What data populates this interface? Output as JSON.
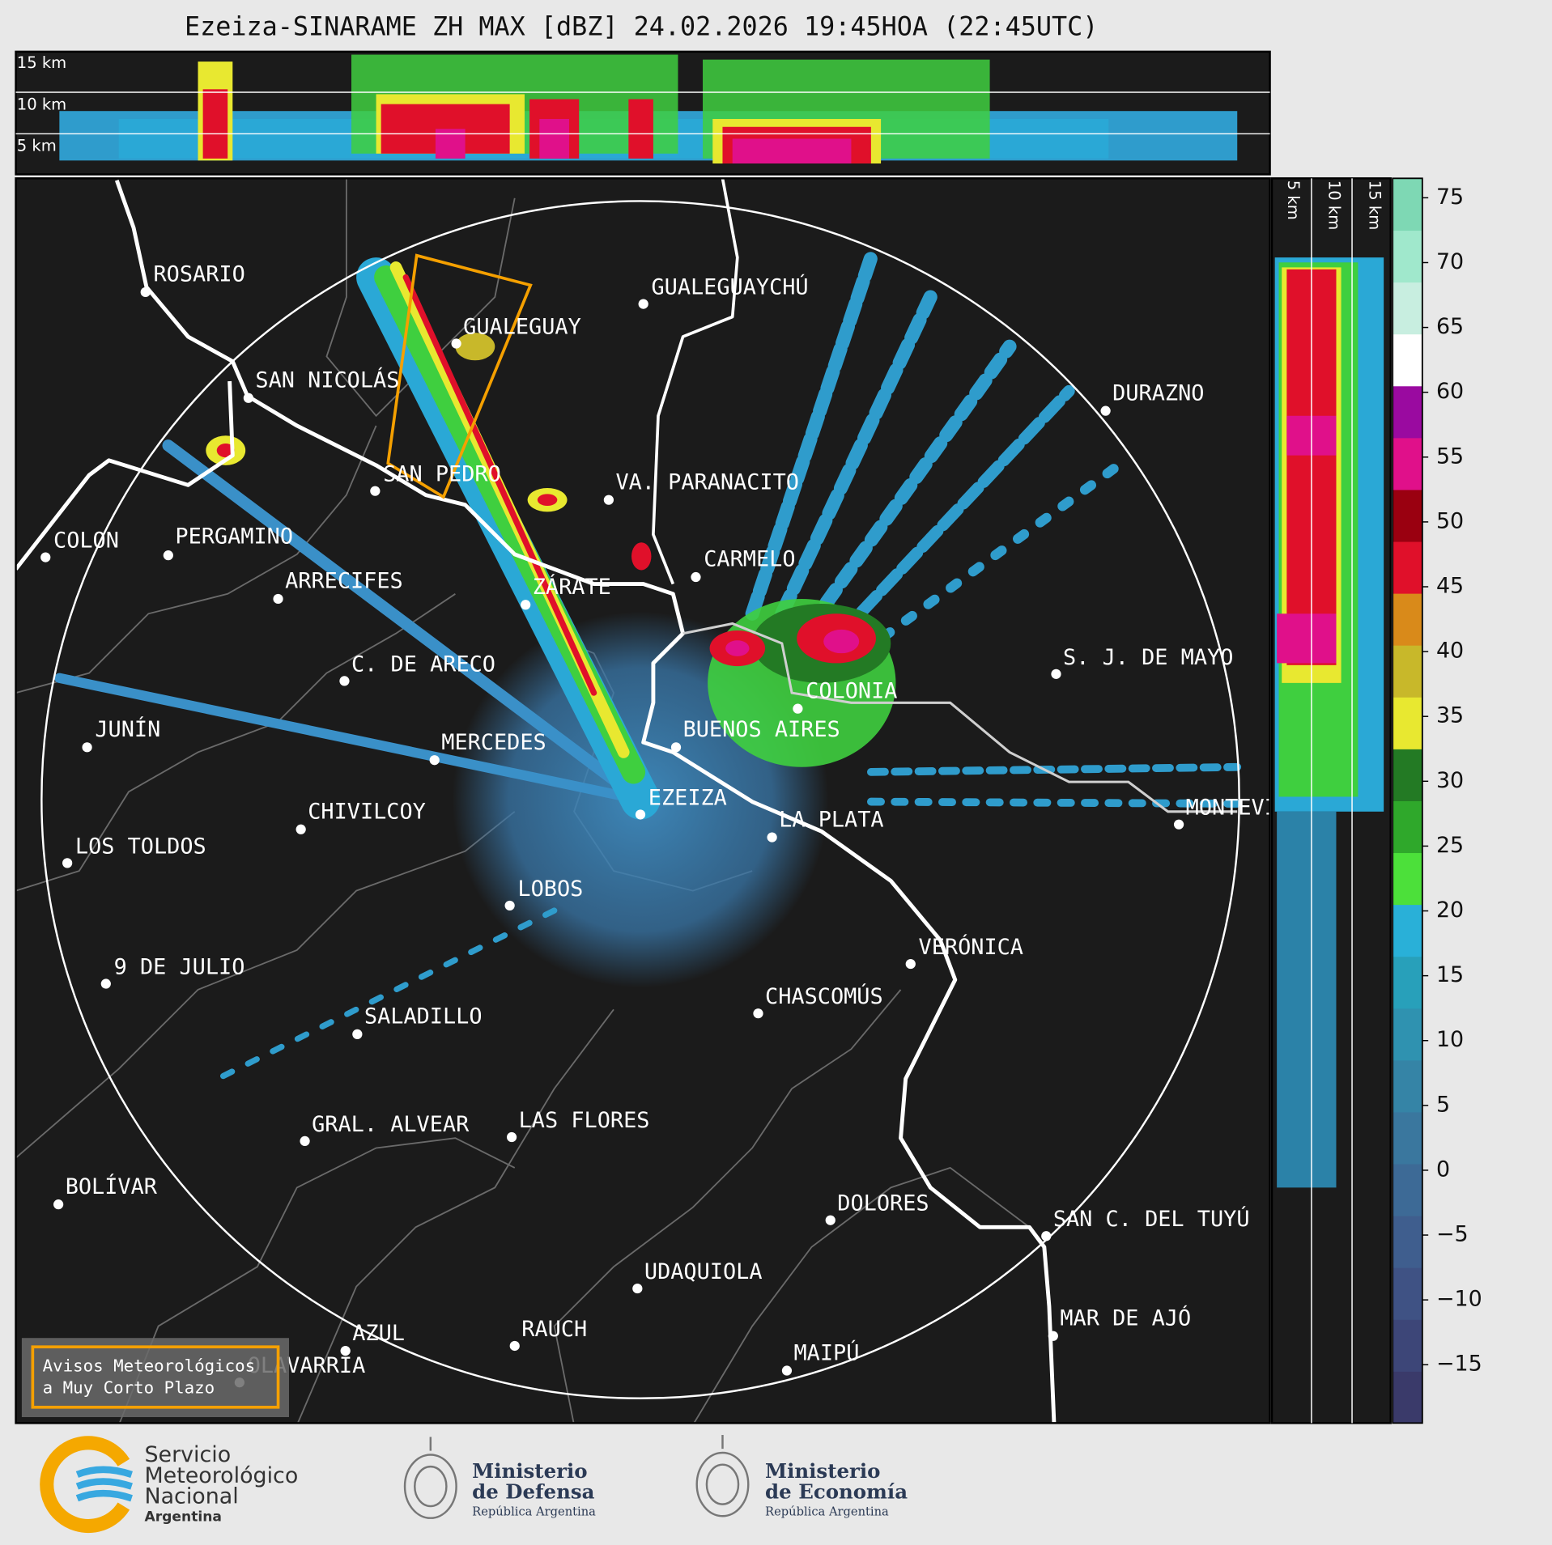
{
  "title": "Ezeiza-SINARAME ZH MAX [dBZ] 24.02.2026 19:45HOA (22:45UTC)",
  "top_panel": {
    "height_labels": [
      "15 km",
      "10 km",
      "5 km"
    ]
  },
  "side_panel": {
    "height_labels": [
      "5 km",
      "10 km",
      "15 km"
    ]
  },
  "cities": [
    "ROSARIO",
    "GUALEGUAYCHÚ",
    "GUALEGUAY",
    "SAN NICOLÁS",
    "DURAZNO",
    "SAN PEDRO",
    "VA. PARANACITO",
    "COLON",
    "PERGAMINO",
    "CARMELO",
    "ARRECIFES",
    "ZÁRATE",
    "C. DE ARECO",
    "S. J. DE MAYO",
    "COLONIA",
    "JUNÍN",
    "BUENOS AIRES",
    "MERCEDES",
    "MONTEVIDEO",
    "EZEIZA",
    "CHIVILCOY",
    "LA PLATA",
    "LOS TOLDOS",
    "LOBOS",
    "VERÓNICA",
    "9 DE JULIO",
    "CHASCOMÚS",
    "SALADILLO",
    "GRAL. ALVEAR",
    "LAS FLORES",
    "BOLÍVAR",
    "DOLORES",
    "SAN C. DEL TUYÚ",
    "UDAQUIOLA",
    "RAUCH",
    "MAR DE AJÓ",
    "AZUL",
    "MAIPÚ",
    "OLAVARRÍA"
  ],
  "warning_box": {
    "lines": [
      "Avisos Meteorológicos",
      "a Muy Corto Plazo"
    ]
  },
  "colorbar": {
    "lim": [
      -19.5,
      76.5
    ],
    "ticks": [
      {
        "value": -15,
        "label": "−15"
      },
      {
        "value": -10,
        "label": "−10"
      },
      {
        "value": -5,
        "label": "−5"
      },
      0,
      5,
      10,
      15,
      20,
      25,
      30,
      35,
      40,
      45,
      50,
      55,
      60,
      65,
      70,
      75
    ],
    "colors": [
      "#3a3a6a",
      "#3d4678",
      "#3f5284",
      "#3f5e8e",
      "#3d6a96",
      "#3a779e",
      "#3584a6",
      "#2f92b0",
      "#28a0ba",
      "#29b0d8",
      "#4ce03a",
      "#2fa82b",
      "#237a24",
      "#e8e830",
      "#c8b82a",
      "#d98a1a",
      "#e0102a",
      "#9a0010",
      "#e0108a",
      "#9a0aa0",
      "#ffffff",
      "#c8eee0",
      "#a0e8cc",
      "#7ed8b4"
    ]
  },
  "footer": {
    "smn": [
      "Servicio",
      "Meteorológico",
      "Nacional",
      "Argentina"
    ],
    "defensa": {
      "lines": [
        "Ministerio",
        "de Defensa"
      ],
      "subtitle": "República Argentina"
    },
    "economia": {
      "lines": [
        "Ministerio",
        "de Economía"
      ],
      "subtitle": "República Argentina"
    }
  }
}
